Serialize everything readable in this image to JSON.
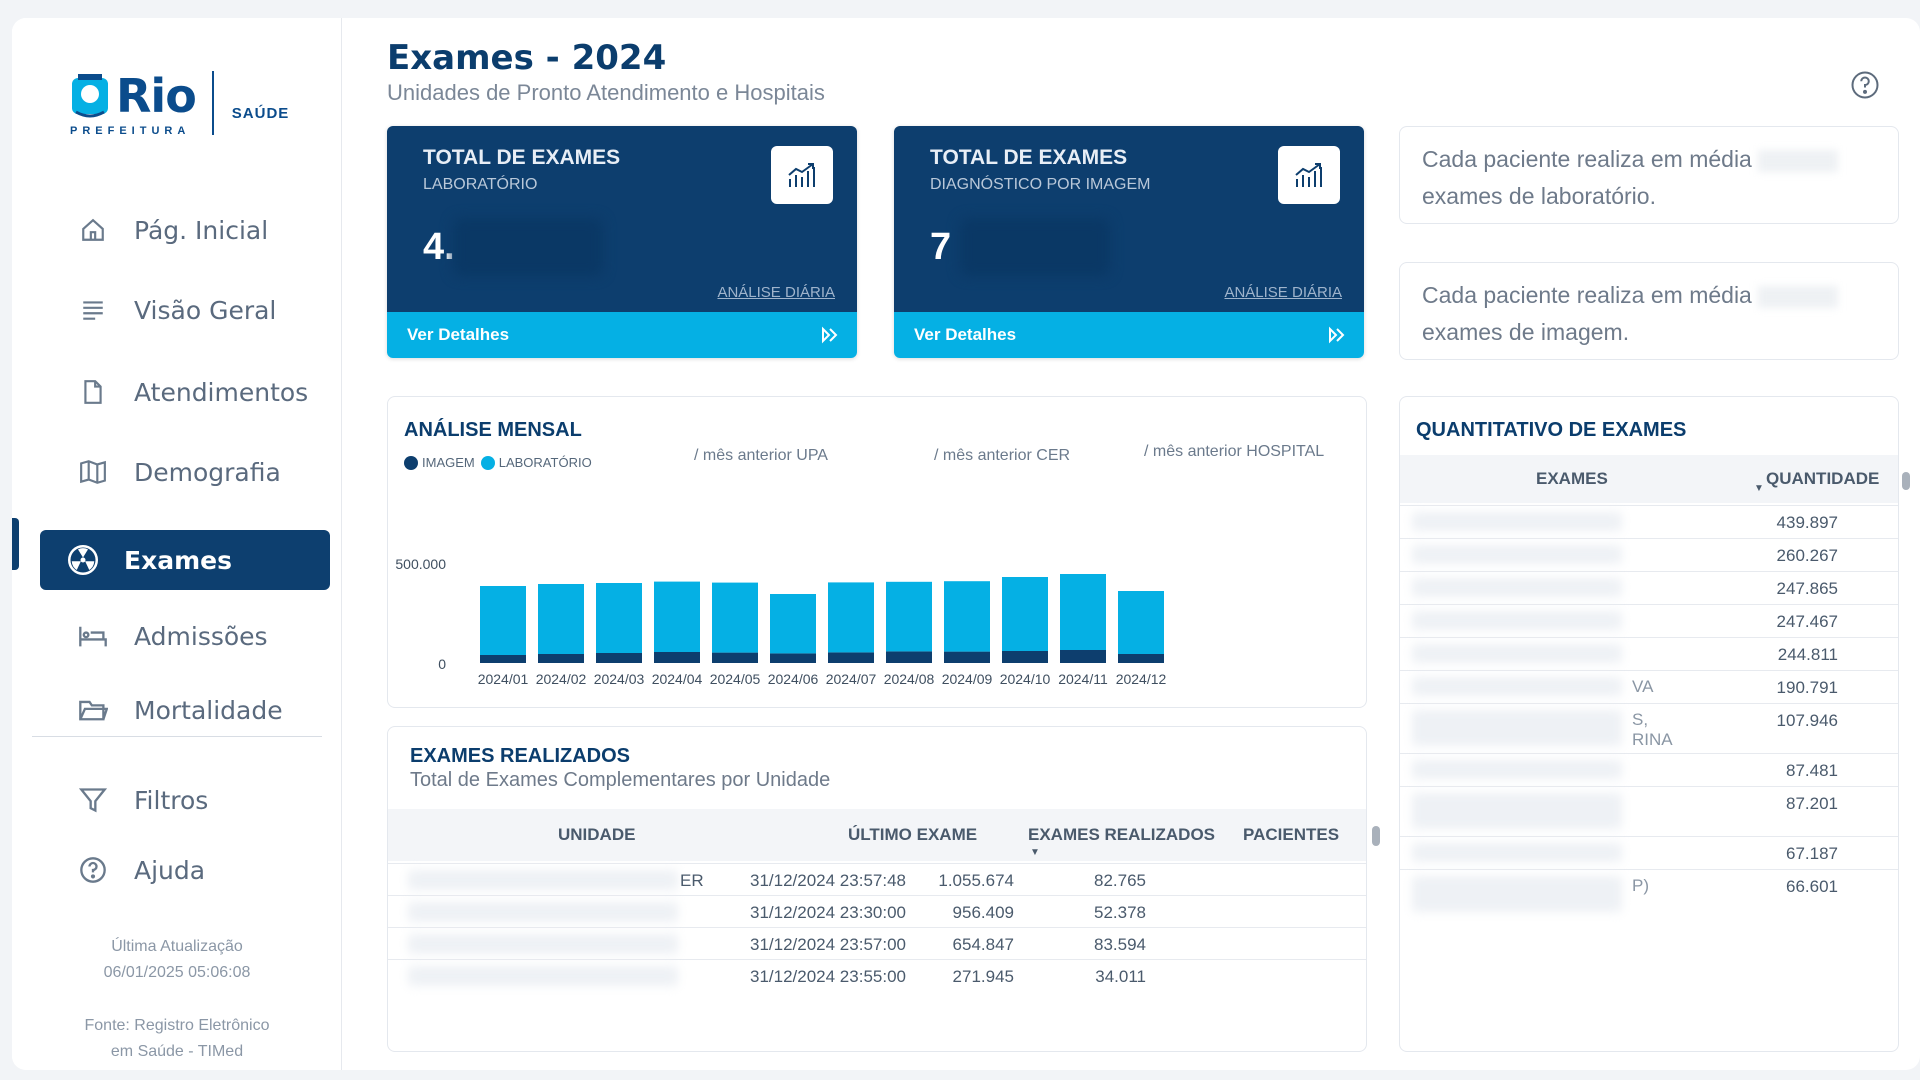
{
  "app": {
    "logo": {
      "name": "Rio",
      "subtitle": "PREFEITURA",
      "section": "SAÚDE"
    },
    "colors": {
      "primary": "#0d3e6e",
      "accent": "#05b0e4",
      "imagem": "#0d3e6e",
      "laboratorio": "#05b0e4"
    }
  },
  "sidebar": {
    "items": [
      {
        "label": "Pág. Inicial",
        "icon": "home-icon"
      },
      {
        "label": "Visão Geral",
        "icon": "list-icon"
      },
      {
        "label": "Atendimentos",
        "icon": "document-icon"
      },
      {
        "label": "Demografia",
        "icon": "map-icon"
      },
      {
        "label": "Exames",
        "icon": "radiation-icon",
        "active": true
      },
      {
        "label": "Admissões",
        "icon": "bed-icon"
      },
      {
        "label": "Mortalidade",
        "icon": "folder-icon"
      },
      {
        "label": "Filtros",
        "icon": "filter-icon"
      },
      {
        "label": "Ajuda",
        "icon": "help-icon"
      }
    ],
    "update_label": "Última Atualização",
    "update_value": "06/01/2025 05:06:08",
    "source_line1": "Fonte: Registro Eletrônico",
    "source_line2": "em Saúde - TIMed"
  },
  "header": {
    "title": "Exames - 2024",
    "subtitle": "Unidades de Pronto Atendimento e Hospitais"
  },
  "kpis": [
    {
      "title": "TOTAL DE EXAMES",
      "subtitle": "LABORATÓRIO",
      "value_visible": "4.",
      "link": "ANÁLISE DIÁRIA",
      "button": "Ver Detalhes"
    },
    {
      "title": "TOTAL DE EXAMES",
      "subtitle": "DIAGNÓSTICO POR IMAGEM",
      "value_visible": "7",
      "link": "ANÁLISE DIÁRIA",
      "button": "Ver Detalhes"
    }
  ],
  "info": [
    {
      "line1": "Cada paciente realiza em média",
      "line2": "exames de laboratório."
    },
    {
      "line1": "Cada paciente realiza em média",
      "line2": "exames de imagem."
    }
  ],
  "monthly": {
    "title": "ANÁLISE MENSAL",
    "legend": [
      "IMAGEM",
      "LABORATÓRIO"
    ],
    "slicers": [
      "/ mês anterior UPA",
      "/ mês anterior CER",
      "/ mês anterior HOSPITAL"
    ]
  },
  "chart_data": {
    "type": "bar",
    "stacked": true,
    "categories": [
      "2024/01",
      "2024/02",
      "2024/03",
      "2024/04",
      "2024/05",
      "2024/06",
      "2024/07",
      "2024/08",
      "2024/09",
      "2024/10",
      "2024/11",
      "2024/12"
    ],
    "series": [
      {
        "name": "IMAGEM",
        "color": "#0d3e6e",
        "values": [
          40000,
          45000,
          50000,
          55000,
          52000,
          48000,
          53000,
          58000,
          57000,
          60000,
          65000,
          45000
        ]
      },
      {
        "name": "LABORATÓRIO",
        "color": "#05b0e4",
        "values": [
          345000,
          350000,
          350000,
          352000,
          350000,
          297000,
          350000,
          348000,
          352000,
          370000,
          380000,
          315000
        ]
      }
    ],
    "yticks": [
      "0",
      "500.000"
    ],
    "ylim": [
      0,
      500000
    ],
    "grid": false,
    "legend_position": "top-left"
  },
  "exames_realizados": {
    "title": "EXAMES REALIZADOS",
    "subtitle": "Total de Exames Complementares por Unidade",
    "columns": [
      "UNIDADE",
      "ÚLTIMO EXAME",
      "EXAMES REALIZADOS",
      "PACIENTES"
    ],
    "rows": [
      {
        "unidade_tail": "ER",
        "ultimo": "31/12/2024 23:57:48",
        "exames": "1.055.674",
        "pacientes": "82.765"
      },
      {
        "unidade_tail": "",
        "ultimo": "31/12/2024 23:30:00",
        "exames": "956.409",
        "pacientes": "52.378"
      },
      {
        "unidade_tail": "",
        "ultimo": "31/12/2024 23:57:00",
        "exames": "654.847",
        "pacientes": "83.594"
      },
      {
        "unidade_tail": "",
        "ultimo": "31/12/2024 23:55:00",
        "exames": "271.945",
        "pacientes": "34.011"
      }
    ]
  },
  "quantitativo": {
    "title": "QUANTITATIVO DE EXAMES",
    "columns": [
      "EXAMES",
      "QUANTIDADE"
    ],
    "rows": [
      {
        "tail": "",
        "qty": "439.897"
      },
      {
        "tail": "",
        "qty": "260.267"
      },
      {
        "tail": "",
        "qty": "247.865"
      },
      {
        "tail": "",
        "qty": "247.467"
      },
      {
        "tail": "",
        "qty": "244.811"
      },
      {
        "tail": "VA",
        "qty": "190.791"
      },
      {
        "tail": "S,\nRINA",
        "qty": "107.946"
      },
      {
        "tail": "",
        "qty": "87.481"
      },
      {
        "tail": "",
        "qty": "87.201"
      },
      {
        "tail": "",
        "qty": "67.187"
      },
      {
        "tail": "P)",
        "qty": "66.601"
      }
    ]
  }
}
